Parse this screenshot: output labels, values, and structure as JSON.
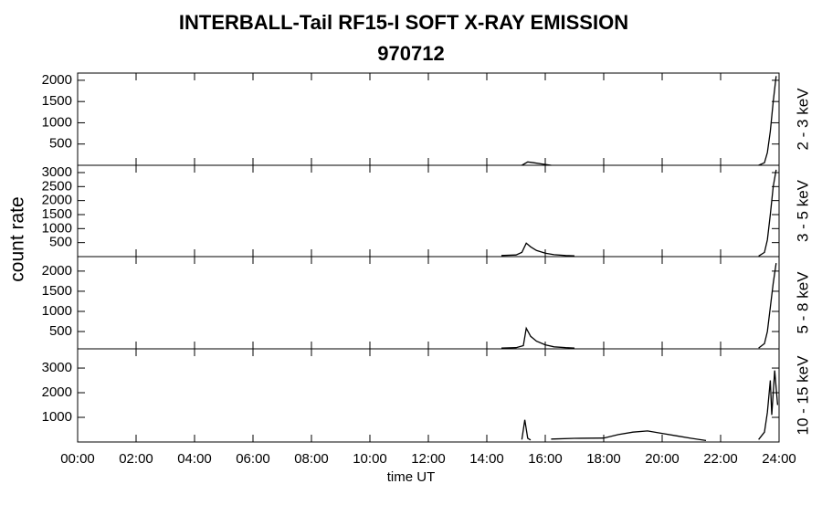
{
  "chart_data": {
    "type": "line",
    "title": "INTERBALL-Tail RF15-I SOFT X-RAY EMISSION",
    "subtitle": "970712",
    "xlabel": "time UT",
    "ylabel": "count rate",
    "xlim": [
      0,
      24
    ],
    "xticks": [
      {
        "value": 0,
        "label": "00:00"
      },
      {
        "value": 2,
        "label": "02:00"
      },
      {
        "value": 4,
        "label": "04:00"
      },
      {
        "value": 6,
        "label": "06:00"
      },
      {
        "value": 8,
        "label": "08:00"
      },
      {
        "value": 10,
        "label": "10:00"
      },
      {
        "value": 12,
        "label": "12:00"
      },
      {
        "value": 14,
        "label": "14:00"
      },
      {
        "value": 16,
        "label": "16:00"
      },
      {
        "value": 18,
        "label": "18:00"
      },
      {
        "value": 20,
        "label": "20:00"
      },
      {
        "value": 22,
        "label": "22:00"
      },
      {
        "value": 24,
        "label": "24:00"
      }
    ],
    "panels": [
      {
        "name": "2 - 3 keV",
        "color": "#000000",
        "ylim": [
          0,
          2170
        ],
        "yticks": [
          500,
          1000,
          1500,
          2000
        ],
        "x": [
          15.2,
          15.4,
          15.6,
          15.9,
          16.2,
          null,
          23.3,
          23.5,
          23.6,
          23.7,
          23.8,
          23.9
        ],
        "values": [
          0,
          80,
          60,
          30,
          0,
          null,
          0,
          60,
          300,
          800,
          1500,
          2100
        ]
      },
      {
        "name": "3 - 5 keV",
        "color": "#000000",
        "ylim": [
          0,
          3260
        ],
        "yticks": [
          500,
          1000,
          1500,
          2000,
          2500,
          3000
        ],
        "x": [
          14.5,
          15.0,
          15.2,
          15.35,
          15.5,
          15.7,
          16.0,
          16.3,
          16.7,
          17.0,
          null,
          23.3,
          23.5,
          23.6,
          23.7,
          23.8,
          23.9
        ],
        "values": [
          40,
          60,
          150,
          480,
          350,
          220,
          120,
          70,
          40,
          30,
          null,
          20,
          150,
          600,
          1500,
          2500,
          3100
        ]
      },
      {
        "name": "5 - 8 keV",
        "color": "#000000",
        "ylim": [
          70,
          2360
        ],
        "yticks": [
          500,
          1000,
          1500,
          2000
        ],
        "x": [
          14.5,
          15.0,
          15.25,
          15.35,
          15.5,
          15.7,
          16.0,
          16.3,
          16.7,
          17.0,
          null,
          23.3,
          23.5,
          23.6,
          23.7,
          23.8,
          23.9
        ],
        "values": [
          90,
          100,
          150,
          580,
          380,
          260,
          170,
          120,
          100,
          90,
          null,
          90,
          200,
          500,
          1100,
          1700,
          2200
        ]
      },
      {
        "name": "10 - 15 keV",
        "color": "#000000",
        "ylim": [
          0,
          3780
        ],
        "yticks": [
          1000,
          2000,
          3000
        ],
        "x": [
          15.2,
          15.3,
          15.4,
          15.5,
          null,
          16.2,
          17.0,
          18.0,
          18.5,
          19.0,
          19.5,
          20.0,
          20.5,
          21.0,
          21.5,
          null,
          23.3,
          23.5,
          23.6,
          23.7,
          23.75,
          23.8,
          23.85,
          23.95
        ],
        "values": [
          100,
          900,
          150,
          80,
          null,
          120,
          150,
          160,
          300,
          400,
          450,
          350,
          250,
          150,
          60,
          null,
          100,
          400,
          1200,
          2500,
          1100,
          2000,
          2900,
          1500
        ]
      }
    ]
  }
}
